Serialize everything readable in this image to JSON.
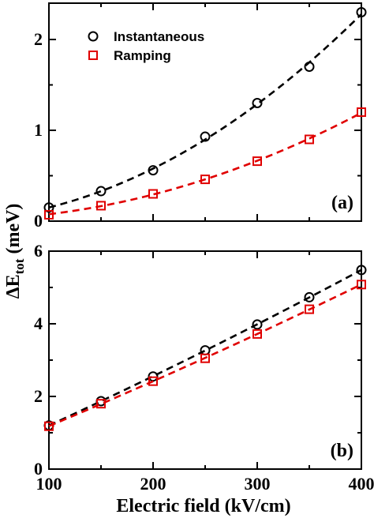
{
  "chart_data": [
    {
      "type": "scatter",
      "panel_label": "(a)",
      "xlim": [
        100,
        400
      ],
      "ylim": [
        0,
        2.4
      ],
      "x_ticks": [
        100,
        200,
        300,
        400
      ],
      "y_ticks": [
        0,
        1,
        2
      ],
      "grid": false,
      "legend_position": "top-left",
      "series": [
        {
          "name": "Instantaneous",
          "color": "#000000",
          "marker": "circle",
          "fit_line": "dashed",
          "x": [
            100,
            150,
            200,
            250,
            300,
            350,
            400
          ],
          "values": [
            0.15,
            0.33,
            0.56,
            0.93,
            1.3,
            1.7,
            2.3
          ]
        },
        {
          "name": "Ramping",
          "color": "#e00000",
          "marker": "square",
          "fit_line": "dashed",
          "x": [
            100,
            150,
            200,
            250,
            300,
            350,
            400
          ],
          "values": [
            0.07,
            0.17,
            0.3,
            0.46,
            0.66,
            0.9,
            1.2
          ]
        }
      ]
    },
    {
      "type": "scatter",
      "panel_label": "(b)",
      "xlim": [
        100,
        400
      ],
      "ylim": [
        0,
        6
      ],
      "x_ticks": [
        100,
        200,
        300,
        400
      ],
      "y_ticks": [
        0,
        2,
        4,
        6
      ],
      "grid": false,
      "series": [
        {
          "color": "#000000",
          "marker": "circle",
          "fit_line": "dashed",
          "x": [
            100,
            150,
            200,
            250,
            300,
            350,
            400
          ],
          "values": [
            1.2,
            1.87,
            2.55,
            3.27,
            3.98,
            4.73,
            5.48
          ]
        },
        {
          "color": "#e00000",
          "marker": "square",
          "fit_line": "dashed",
          "x": [
            100,
            150,
            200,
            250,
            300,
            350,
            400
          ],
          "values": [
            1.18,
            1.8,
            2.42,
            3.05,
            3.72,
            4.4,
            5.08
          ]
        }
      ]
    }
  ],
  "y_axis_title": {
    "symbol": "ΔE",
    "subscript": "tot",
    "unit": "(meV)"
  },
  "x_axis_title": "Electric field (kV/cm)"
}
